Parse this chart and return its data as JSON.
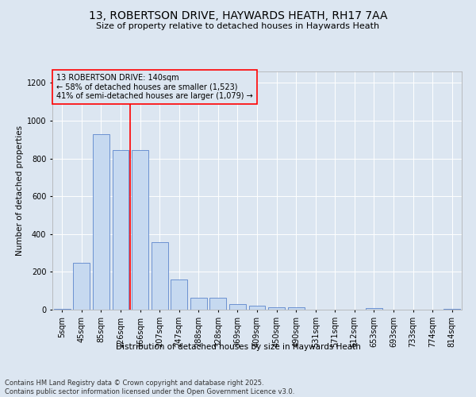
{
  "title_line1": "13, ROBERTSON DRIVE, HAYWARDS HEATH, RH17 7AA",
  "title_line2": "Size of property relative to detached houses in Haywards Heath",
  "xlabel": "Distribution of detached houses by size in Haywards Heath",
  "ylabel": "Number of detached properties",
  "footer_line1": "Contains HM Land Registry data © Crown copyright and database right 2025.",
  "footer_line2": "Contains public sector information licensed under the Open Government Licence v3.0.",
  "annotation_line1": "13 ROBERTSON DRIVE: 140sqm",
  "annotation_line2": "← 58% of detached houses are smaller (1,523)",
  "annotation_line3": "41% of semi-detached houses are larger (1,079) →",
  "bar_labels": [
    "5sqm",
    "45sqm",
    "85sqm",
    "126sqm",
    "166sqm",
    "207sqm",
    "247sqm",
    "288sqm",
    "328sqm",
    "369sqm",
    "409sqm",
    "450sqm",
    "490sqm",
    "531sqm",
    "571sqm",
    "612sqm",
    "653sqm",
    "693sqm",
    "733sqm",
    "774sqm",
    "814sqm"
  ],
  "bar_values": [
    5,
    247,
    930,
    845,
    845,
    358,
    158,
    65,
    62,
    30,
    22,
    12,
    12,
    2,
    0,
    0,
    8,
    0,
    0,
    0,
    5
  ],
  "bar_color": "#c6d9f0",
  "bar_edge_color": "#4472c4",
  "vline_x_index": 3.5,
  "vline_color": "red",
  "annotation_box_color": "red",
  "background_color": "#dce6f1",
  "ylim": [
    0,
    1260
  ],
  "yticks": [
    0,
    200,
    400,
    600,
    800,
    1000,
    1200
  ],
  "title1_fontsize": 10,
  "title2_fontsize": 8,
  "xlabel_fontsize": 7.5,
  "ylabel_fontsize": 7.5,
  "tick_fontsize": 7,
  "annotation_fontsize": 7,
  "footer_fontsize": 6
}
